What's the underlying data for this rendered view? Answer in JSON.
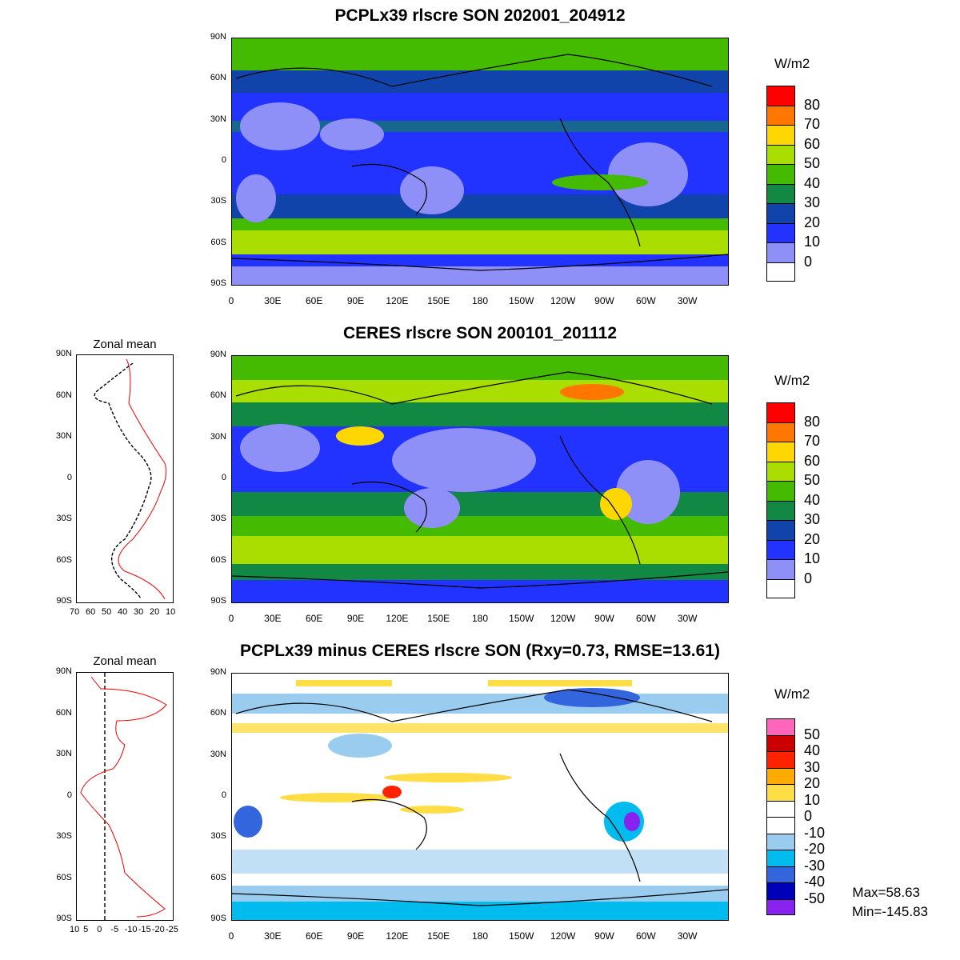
{
  "panels": [
    {
      "title": "PCPLx39 rlscre SON 202001_204912",
      "unit": "W/m2",
      "legend_labels": [
        "80",
        "70",
        "60",
        "50",
        "40",
        "30",
        "20",
        "10",
        "0"
      ],
      "legend_colors": [
        "#ff0000",
        "#ff7700",
        "#ffd700",
        "#aadd00",
        "#44bb00",
        "#118844",
        "#1144aa",
        "#2233ff",
        "#8e90f8",
        "#ffffff"
      ]
    },
    {
      "title": "CERES rlscre SON 200101_201112",
      "unit": "W/m2",
      "legend_labels": [
        "80",
        "70",
        "60",
        "50",
        "40",
        "30",
        "20",
        "10",
        "0"
      ],
      "legend_colors": [
        "#ff0000",
        "#ff7700",
        "#ffd700",
        "#aadd00",
        "#44bb00",
        "#118844",
        "#1144aa",
        "#2233ff",
        "#8e90f8",
        "#ffffff"
      ]
    },
    {
      "title": "PCPLx39 minus CERES rlscre SON (Rxy=0.73, RMSE=13.61)",
      "unit": "W/m2",
      "legend_labels": [
        "50",
        "40",
        "30",
        "20",
        "10",
        "0",
        "-10",
        "-20",
        "-30",
        "-40",
        "-50"
      ],
      "legend_colors": [
        "#ff66bb",
        "#cc0000",
        "#ff2200",
        "#ffaa00",
        "#ffdd44",
        "#ffffff",
        "#ffffff",
        "#99ccee",
        "#00bbee",
        "#3366dd",
        "#0000bb",
        "#8822ee"
      ]
    }
  ],
  "lat_ticks": [
    "90N",
    "60N",
    "30N",
    "0",
    "30S",
    "60S",
    "90S"
  ],
  "lon_ticks": [
    "0",
    "30E",
    "60E",
    "90E",
    "120E",
    "150E",
    "180",
    "150W",
    "120W",
    "90W",
    "60W",
    "30W"
  ],
  "zonal": [
    {
      "label": "Zonal mean",
      "x_ticks": [
        "70",
        "60",
        "50",
        "40",
        "30",
        "20",
        "10"
      ]
    },
    {
      "label": "Zonal mean",
      "x_ticks": [
        "10",
        "5",
        "0",
        "-5",
        "-10",
        "-15",
        "-20",
        "-25"
      ]
    }
  ],
  "stats": {
    "max": "Max=58.63",
    "min": "Min=-145.83"
  }
}
